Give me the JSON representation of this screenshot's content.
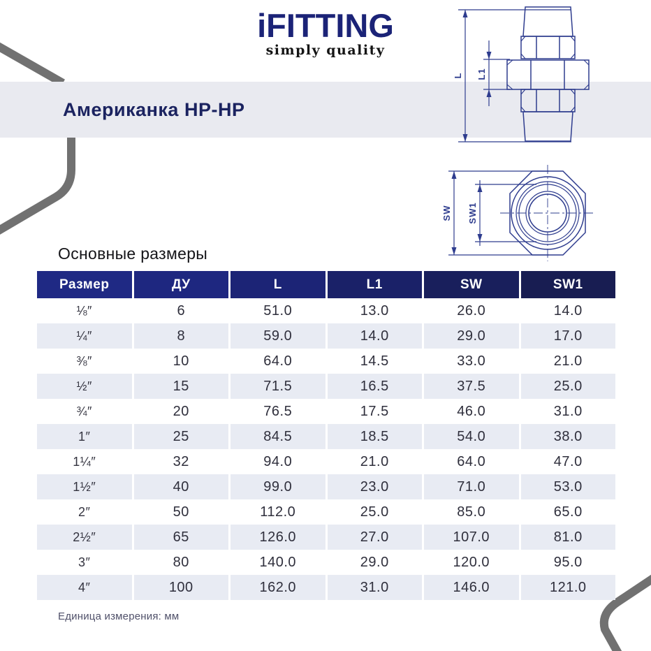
{
  "brand": {
    "logo": "iFITTING",
    "tagline": "simply quality"
  },
  "banner": {
    "title": "Американка НР-НР"
  },
  "drawings": {
    "side": {
      "l_label": "L",
      "l1_label": "L1"
    },
    "front": {
      "sw_label": "SW",
      "sw1_label": "SW1"
    }
  },
  "table": {
    "section_title": "Основные размеры",
    "headers": [
      "Размер",
      "ДУ",
      "L",
      "L1",
      "SW",
      "SW1"
    ],
    "rows": [
      [
        "⅛″",
        "6",
        "51.0",
        "13.0",
        "26.0",
        "14.0"
      ],
      [
        "¼″",
        "8",
        "59.0",
        "14.0",
        "29.0",
        "17.0"
      ],
      [
        "⅜″",
        "10",
        "64.0",
        "14.5",
        "33.0",
        "21.0"
      ],
      [
        "½″",
        "15",
        "71.5",
        "16.5",
        "37.5",
        "25.0"
      ],
      [
        "¾″",
        "20",
        "76.5",
        "17.5",
        "46.0",
        "31.0"
      ],
      [
        "1″",
        "25",
        "84.5",
        "18.5",
        "54.0",
        "38.0"
      ],
      [
        "1¼″",
        "32",
        "94.0",
        "21.0",
        "64.0",
        "47.0"
      ],
      [
        "1½″",
        "40",
        "99.0",
        "23.0",
        "71.0",
        "53.0"
      ],
      [
        "2″",
        "50",
        "112.0",
        "25.0",
        "85.0",
        "65.0"
      ],
      [
        "2½″",
        "65",
        "126.0",
        "27.0",
        "107.0",
        "81.0"
      ],
      [
        "3″",
        "80",
        "140.0",
        "29.0",
        "120.0",
        "95.0"
      ],
      [
        "4″",
        "100",
        "162.0",
        "31.0",
        "146.0",
        "121.0"
      ]
    ],
    "footnote": "Единица измерения: мм"
  },
  "colors": {
    "brand_navy": "#1b2377",
    "banner_bg": "#e9eaf0",
    "row_alt": "#e8ebf3",
    "header_blue_left": "#1f2984",
    "header_blue_right": "#181d52",
    "drawing_line": "#2e3c8e",
    "deco_gray": "#717171"
  }
}
